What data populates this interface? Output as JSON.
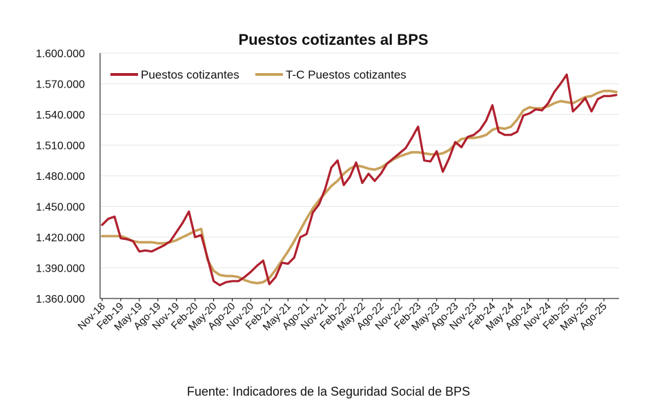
{
  "chart_data": {
    "type": "line",
    "title": "Puestos cotizantes al BPS",
    "ylim": [
      1360000,
      1600000
    ],
    "y_ticks": [
      1360000,
      1390000,
      1420000,
      1450000,
      1480000,
      1510000,
      1540000,
      1570000,
      1600000
    ],
    "y_tick_labels": [
      "1.360.000",
      "1.390.000",
      "1.420.000",
      "1.450.000",
      "1.480.000",
      "1.510.000",
      "1.540.000",
      "1.570.000",
      "1.600.000"
    ],
    "x_tick_labels": [
      "Nov-18",
      "Feb-19",
      "May-19",
      "Ago-19",
      "Nov-19",
      "Feb-20",
      "May-20",
      "Ago-20",
      "Nov-20",
      "Feb-21",
      "May-21",
      "Ago-21",
      "Nov-21",
      "Feb-22",
      "May-22",
      "Ago-22",
      "Nov-22",
      "Feb-23",
      "May-23",
      "Ago-23",
      "Nov-23",
      "Feb-24",
      "May-24",
      "Ago-24",
      "Nov-24",
      "Feb-25",
      "May-25",
      "Ago-25"
    ],
    "grid": "horizontal",
    "legend_position": "top-left",
    "series": [
      {
        "name": "Puestos cotizantes",
        "color": "#b0202e",
        "values": [
          1432000,
          1438000,
          1440000,
          1419000,
          1418000,
          1416000,
          1406000,
          1407000,
          1406000,
          1409000,
          1412000,
          1416000,
          1425000,
          1434000,
          1445000,
          1420000,
          1422000,
          1400000,
          1377000,
          1373000,
          1376000,
          1377000,
          1377000,
          1381000,
          1386000,
          1392000,
          1397000,
          1374000,
          1381000,
          1395000,
          1394000,
          1400000,
          1420000,
          1423000,
          1444000,
          1452000,
          1467000,
          1488000,
          1495000,
          1471000,
          1479000,
          1493000,
          1473000,
          1482000,
          1475000,
          1482000,
          1492000,
          1497000,
          1502000,
          1507000,
          1517000,
          1528000,
          1495000,
          1494000,
          1504000,
          1484000,
          1497000,
          1513000,
          1508000,
          1518000,
          1520000,
          1525000,
          1534000,
          1549000,
          1523000,
          1520000,
          1520000,
          1523000,
          1539000,
          1541000,
          1545000,
          1544000,
          1551000,
          1562000,
          1570000,
          1579000,
          1543000,
          1549000,
          1556000,
          1543000,
          1555000,
          1558000,
          1558000,
          1559000
        ]
      },
      {
        "name": "T-C Puestos cotizantes",
        "color": "#c9a15a",
        "values": [
          1421000,
          1421000,
          1421000,
          1421000,
          1419000,
          1416000,
          1415000,
          1415000,
          1415000,
          1414000,
          1414000,
          1415000,
          1417000,
          1420000,
          1423000,
          1426000,
          1428000,
          1398000,
          1387000,
          1383000,
          1382000,
          1382000,
          1381000,
          1378000,
          1376000,
          1375000,
          1376000,
          1380000,
          1388000,
          1397000,
          1406000,
          1416000,
          1427000,
          1438000,
          1448000,
          1456000,
          1463000,
          1470000,
          1475000,
          1482000,
          1487000,
          1490000,
          1489000,
          1487000,
          1486000,
          1488000,
          1492000,
          1496000,
          1499000,
          1501000,
          1503000,
          1503000,
          1502000,
          1501000,
          1501000,
          1502000,
          1505000,
          1511000,
          1516000,
          1517000,
          1517000,
          1518000,
          1520000,
          1525000,
          1527000,
          1526000,
          1528000,
          1535000,
          1544000,
          1547000,
          1546000,
          1546000,
          1548000,
          1551000,
          1553000,
          1552000,
          1551000,
          1554000,
          1557000,
          1558000,
          1561000,
          1563000,
          1563000,
          1562000
        ]
      }
    ]
  },
  "source_text": "Fuente: Indicadores de la Seguridad Social de BPS"
}
